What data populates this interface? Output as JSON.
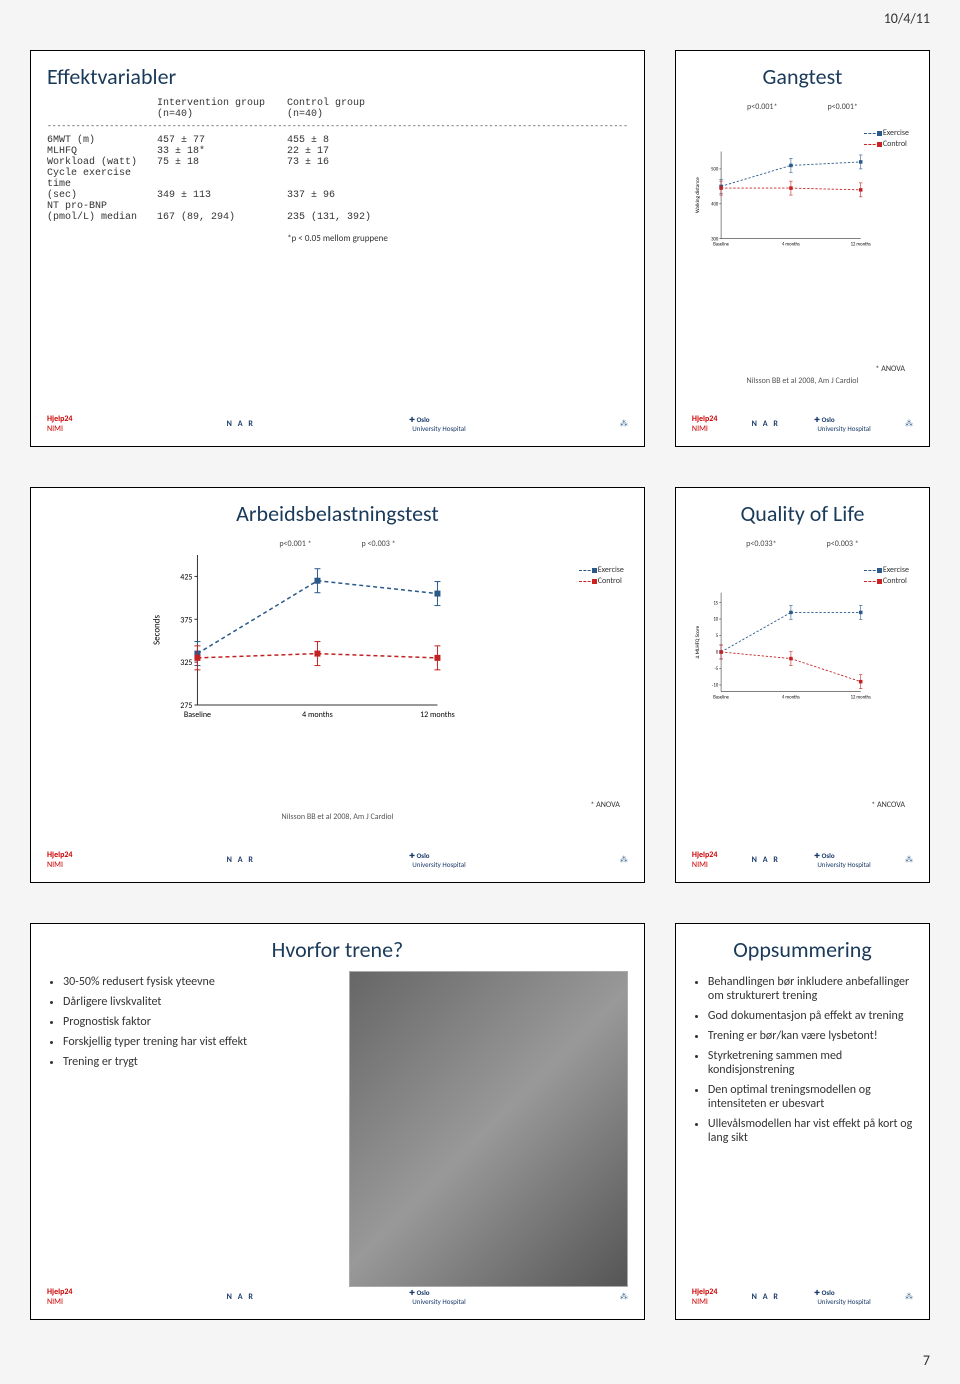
{
  "page": {
    "date": "10/4/11",
    "number": "7"
  },
  "slide1": {
    "title": "Effektvariabler",
    "head": {
      "c1": "",
      "c2": "Intervention group (n=40)",
      "c3": "Control group (n=40)"
    },
    "rows": [
      {
        "label": "6MWT (m)",
        "a": "457 ± 77",
        "b": "455 ± 8"
      },
      {
        "label": "MLHFQ",
        "a": "33 ± 18*",
        "b": "22 ± 17"
      },
      {
        "label": "Workload (watt)",
        "a": "75 ± 18",
        "b": "73 ± 16"
      },
      {
        "label": "Cycle exercise time",
        "a": "",
        "b": ""
      },
      {
        "label": "(sec)",
        "a": "349 ± 113",
        "b": "337 ± 96"
      },
      {
        "label": "NT pro-BNP",
        "a": "",
        "b": ""
      },
      {
        "label": "(pmol/L) median",
        "a": "167 (89, 294)",
        "b": "235 (131, 392)"
      }
    ],
    "note": "*p < 0.05 mellom gruppene"
  },
  "slide2": {
    "title": "Gangtest",
    "pvals": [
      "p<0.001*",
      "p<0.001*"
    ],
    "legend": [
      "Exercise",
      "Control"
    ],
    "ylabel": "Walking distance",
    "yticks": [
      "500",
      "400",
      "300",
      "0"
    ],
    "xticks": [
      "Baseline",
      "4 months",
      "12 months"
    ],
    "series_color_ex": "#2a5a8a",
    "series_color_ctl": "#c22222",
    "exercise": [
      450,
      510,
      520
    ],
    "control": [
      445,
      445,
      440
    ],
    "anova": "* ANOVA",
    "cite": "Nilsson BB et al 2008, Am J Cardiol"
  },
  "slide3": {
    "title": "Arbeidsbelastningstest",
    "pvals": [
      "p<0.001 *",
      "p <0.003 *"
    ],
    "legend": [
      "Exercise",
      "Control"
    ],
    "ylabel": "Seconds",
    "yticks": [
      "425",
      "375",
      "325",
      "275"
    ],
    "xticks": [
      "Baseline",
      "4 months",
      "12 months"
    ],
    "series_color_ex": "#2a5a8a",
    "series_color_ctl": "#c22222",
    "exercise": [
      335,
      420,
      405
    ],
    "control": [
      330,
      335,
      330
    ],
    "anova": "* ANOVA",
    "cite": "Nilsson BB et al 2008, Am J Cardiol"
  },
  "slide4": {
    "title": "Quality of Life",
    "pvals": [
      "p<0.033*",
      "p<0.003 *"
    ],
    "legend": [
      "Exercise",
      "Control"
    ],
    "ylabel": "Δ MLHFQ Score",
    "yticks": [
      "15",
      "10",
      "5",
      "0",
      "-5",
      "-10"
    ],
    "xticks": [
      "Baseline",
      "4 months",
      "12 months"
    ],
    "series_color_ex": "#2a5a8a",
    "series_color_ctl": "#c22222",
    "exercise": [
      0,
      12,
      12
    ],
    "control": [
      0,
      -2,
      -9
    ],
    "anova": "* ANCOVA"
  },
  "slide5": {
    "title": "Hvorfor trene?",
    "bullets": [
      "30-50% redusert fysisk yteevne",
      "Dårligere livskvalitet",
      "Prognostisk faktor",
      "Forskjellig typer trening har vist effekt",
      "Trening er trygt"
    ]
  },
  "slide6": {
    "title": "Oppsummering",
    "bullets": [
      "Behandlingen bør inkludere anbefallinger om strukturert trening",
      "God dokumentasjon på effekt av trening",
      "Trening er bør/kan være lysbetont!",
      "Styrketrening sammen med kondisjonstrening",
      "Den optimal treningsmodellen og intensiteten er ubesvart",
      "Ullevålsmodellen har vist effekt på kort og lang sikt"
    ]
  },
  "logos": {
    "hjelp24": "Hjelp24",
    "nimi": "NIMI",
    "nar": "N A R",
    "ouh1": "Oslo",
    "ouh2": "University Hospital"
  }
}
